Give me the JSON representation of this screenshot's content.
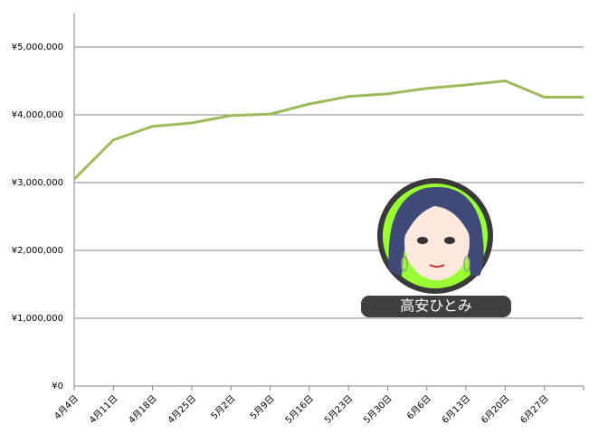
{
  "chart_data": {
    "type": "line",
    "categories": [
      "4月4日",
      "4月11日",
      "4月18日",
      "4月25日",
      "5月2日",
      "5月9日",
      "5月16日",
      "5月23日",
      "5月30日",
      "6月6日",
      "6月13日",
      "6月20日",
      "6月27日",
      null
    ],
    "series": [
      {
        "color": "#9bbb59",
        "values": [
          3050000,
          3630000,
          3830000,
          3880000,
          3990000,
          4010000,
          4160000,
          4270000,
          4310000,
          4390000,
          4440000,
          4500000,
          4260000,
          4260000
        ]
      }
    ],
    "ylim": [
      0,
      5500000
    ],
    "yticks": [
      {
        "value": 0,
        "label": "¥0"
      },
      {
        "value": 1000000,
        "label": "¥1,000,000"
      },
      {
        "value": 2000000,
        "label": "¥2,000,000"
      },
      {
        "value": 3000000,
        "label": "¥3,000,000"
      },
      {
        "value": 4000000,
        "label": "¥4,000,000"
      },
      {
        "value": 5000000,
        "label": "¥5,000,000"
      }
    ],
    "grid": true,
    "badge": "高安ひとみ"
  }
}
